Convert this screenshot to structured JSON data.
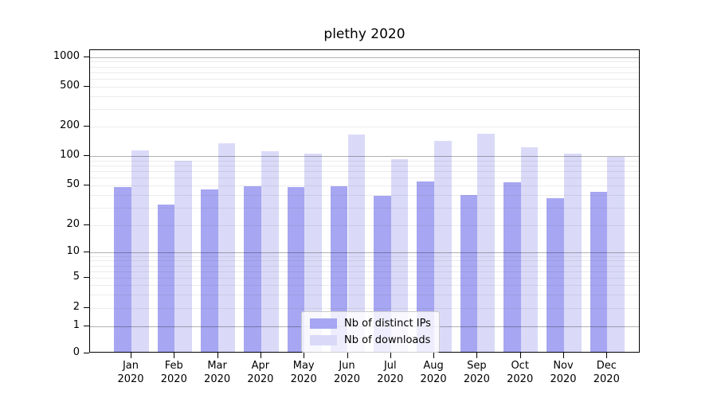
{
  "title": "plethy 2020",
  "chart_data": {
    "type": "bar",
    "categories": [
      "Jan",
      "Feb",
      "Mar",
      "Apr",
      "May",
      "Jun",
      "Jul",
      "Aug",
      "Sep",
      "Oct",
      "Nov",
      "Dec"
    ],
    "year_suffix": "2020",
    "series": [
      {
        "name": "Nb of distinct IPs",
        "color": "#a6a6f2",
        "values": [
          47,
          31,
          44,
          48,
          47,
          48,
          38,
          53,
          39,
          52,
          36,
          42
        ]
      },
      {
        "name": "Nb of downloads",
        "color": "#dadaf8",
        "values": [
          110,
          87,
          130,
          107,
          102,
          161,
          89,
          139,
          163,
          119,
          101,
          95
        ]
      }
    ],
    "yticks": [
      0,
      1,
      2,
      5,
      10,
      20,
      50,
      100,
      200,
      500,
      1000
    ],
    "major_yticks": [
      1,
      10,
      100,
      1000
    ],
    "ylim": [
      0,
      1200
    ],
    "yscale": "symlog-like",
    "grid": true,
    "legend_position": "lower center",
    "colors": {
      "bar_ips": "#a6a6f2",
      "bar_downloads": "#dadaf8",
      "major_grid": "#b5b5b5",
      "minor_grid": "#ebebeb",
      "axis": "#000000",
      "legend_border": "#cccccc"
    }
  }
}
